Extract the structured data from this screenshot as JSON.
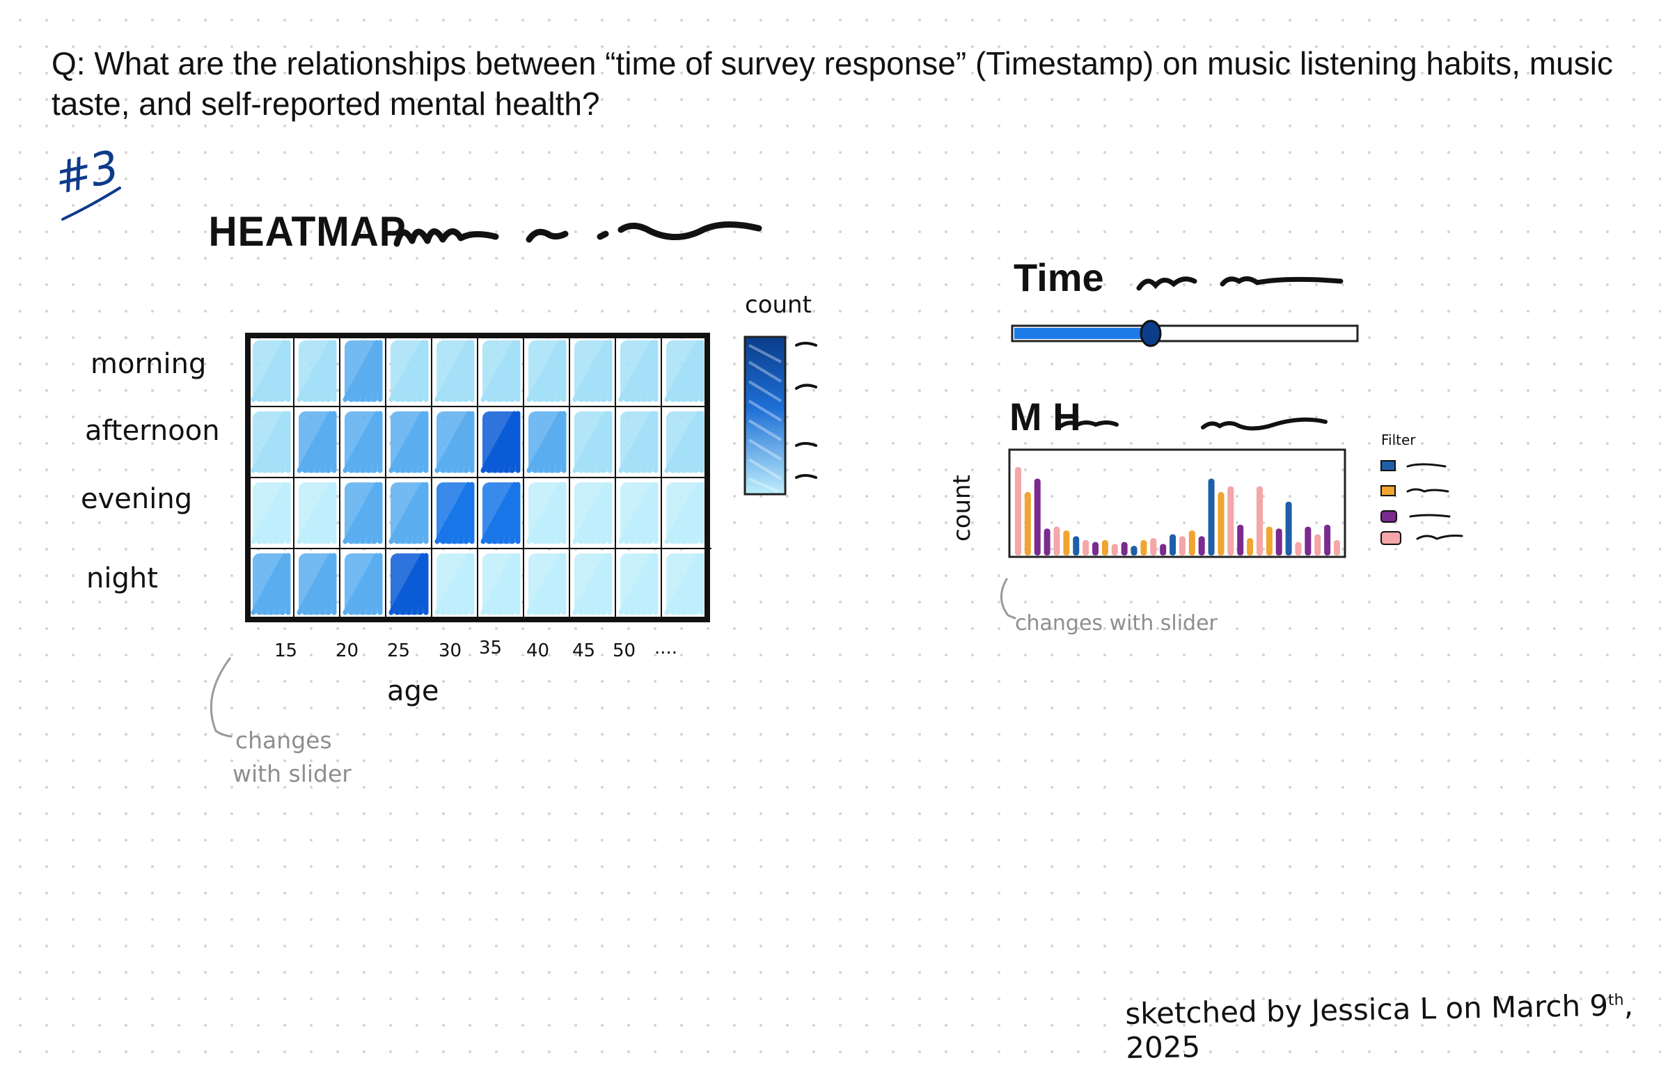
{
  "question": "Q: What are the relationships between “time of survey response” (Timestamp) on music listening habits, music taste, and self-reported mental health?",
  "sketch_number": "#3",
  "heatmap": {
    "title": "HEATMAP",
    "row_labels": [
      "morning",
      "afternoon",
      "evening",
      "night"
    ],
    "x_ticks": [
      "15",
      "20",
      "25",
      "30",
      "35",
      "40",
      "45",
      "50",
      "...."
    ],
    "x_label": "age",
    "legend_title": "count",
    "note": [
      "changes",
      "with slider"
    ],
    "colors": {
      "very_light": "#bfeefc",
      "light": "#a4e0f7",
      "medium": "#5aaef0",
      "dark": "#1876e8",
      "darkest": "#0b5bd6"
    },
    "cells": [
      [
        "light",
        "light",
        "medium",
        "light",
        "light",
        "light",
        "light",
        "light",
        "light",
        "light"
      ],
      [
        "light",
        "medium",
        "medium",
        "medium",
        "medium",
        "darkest",
        "medium",
        "light",
        "light",
        "light"
      ],
      [
        "very_light",
        "very_light",
        "medium",
        "medium",
        "dark",
        "dark",
        "very_light",
        "very_light",
        "very_light",
        "very_light"
      ],
      [
        "medium",
        "medium",
        "medium",
        "darkest",
        "very_light",
        "very_light",
        "very_light",
        "very_light",
        "very_light",
        "very_light"
      ]
    ]
  },
  "slider": {
    "title": "Time",
    "level": 0.4,
    "fill_color": "#1d7be8",
    "handle_color": "#0b3d8a"
  },
  "bar_chart": {
    "title": "M H",
    "y_label": "count",
    "legend_title": "Filter",
    "note": "changes with slider",
    "series_colors": [
      "#1f5ea8",
      "#f0a431",
      "#7b2a8e",
      "#f4a6a8"
    ]
  },
  "signature": {
    "text": "sketched by Jessica L on March 9",
    "superscript": "th",
    "year": ", 2025"
  }
}
